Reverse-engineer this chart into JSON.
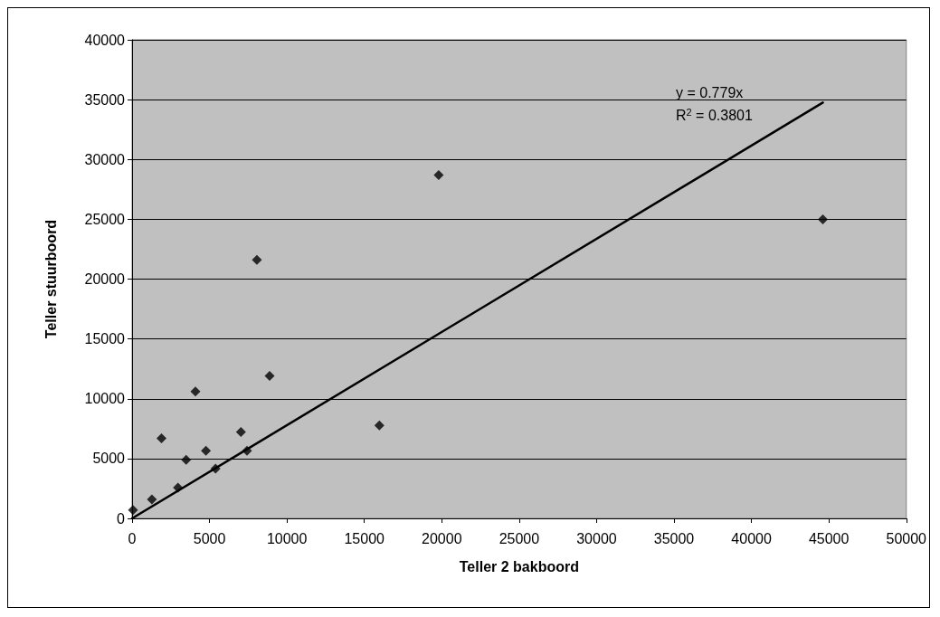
{
  "chart_data": {
    "type": "scatter",
    "xlabel": "Teller 2 bakboord",
    "ylabel": "Teller stuurboord",
    "xlim": [
      0,
      50000
    ],
    "xticks": [
      0,
      5000,
      10000,
      15000,
      20000,
      25000,
      30000,
      35000,
      40000,
      45000,
      50000
    ],
    "ylim": [
      0,
      40000
    ],
    "yticks": [
      0,
      5000,
      10000,
      15000,
      20000,
      25000,
      30000,
      35000,
      40000
    ],
    "grid": "y",
    "marker": "diamond",
    "series": [
      {
        "color": "#000000",
        "x": [
          60,
          1280,
          1900,
          2960,
          3490,
          4090,
          4770,
          5390,
          7030,
          7420,
          8880,
          8060,
          15970,
          19800,
          44610
        ],
        "values": [
          700,
          1580,
          6700,
          2580,
          4900,
          10600,
          5660,
          4160,
          7220,
          5660,
          11900,
          21600,
          7770,
          28700,
          25000
        ]
      },
      {
        "type": "line",
        "color": "#000000",
        "marker": "none",
        "line_style": "solid",
        "x": [
          0,
          44610
        ],
        "values": [
          0,
          34750
        ]
      }
    ],
    "annotations": [
      "y = 0.779x",
      "R$^{2}$ = 0.3801"
    ]
  }
}
